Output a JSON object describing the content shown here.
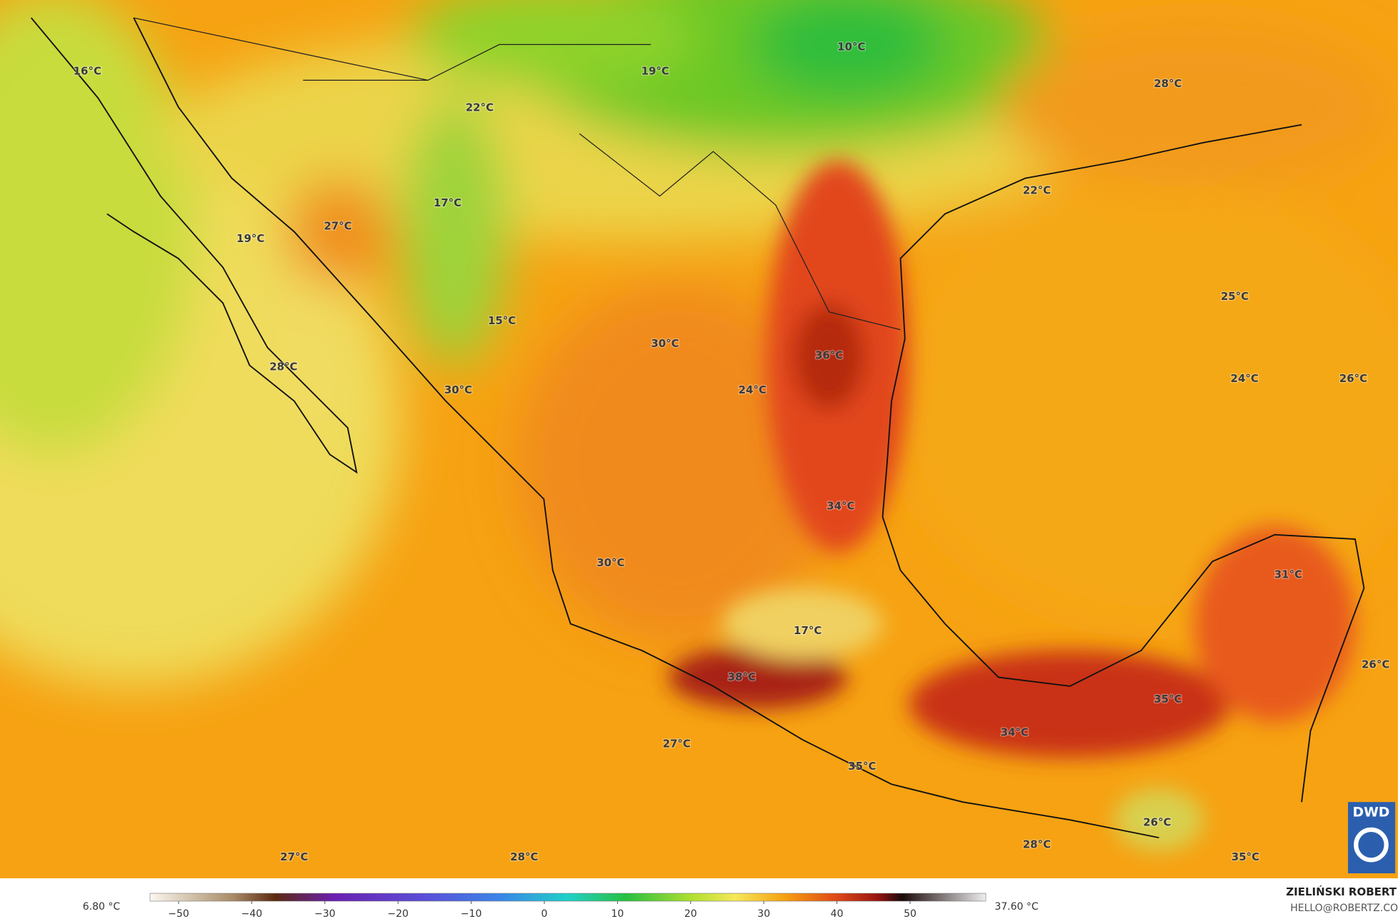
{
  "map": {
    "labels": [
      "16°C",
      "19°C",
      "10°C",
      "22°C",
      "28°C",
      "22°C",
      "17°C",
      "27°C",
      "19°C",
      "25°C",
      "15°C",
      "30°C",
      "36°C",
      "28°C",
      "24°C",
      "30°C",
      "24°C",
      "26°C",
      "34°C",
      "31°C",
      "30°C",
      "17°C",
      "26°C",
      "38°C",
      "35°C",
      "34°C",
      "27°C",
      "35°C",
      "28°C",
      "27°C",
      "28°C",
      "26°C",
      "35°C"
    ],
    "logo": "DWD"
  },
  "legend": {
    "min": "6.80 °C",
    "max": "37.60 °C",
    "ticks": [
      {
        "value": -50,
        "label": "−50"
      },
      {
        "value": -40,
        "label": "−40"
      },
      {
        "value": -30,
        "label": "−30"
      },
      {
        "value": -20,
        "label": "−20"
      },
      {
        "value": -10,
        "label": "−10"
      },
      0,
      10,
      20,
      30,
      40,
      50
    ]
  },
  "credit": {
    "author": "ZIELIŃSKI ROBERT",
    "contact": "HELLO@ROBERTZ.CO"
  }
}
